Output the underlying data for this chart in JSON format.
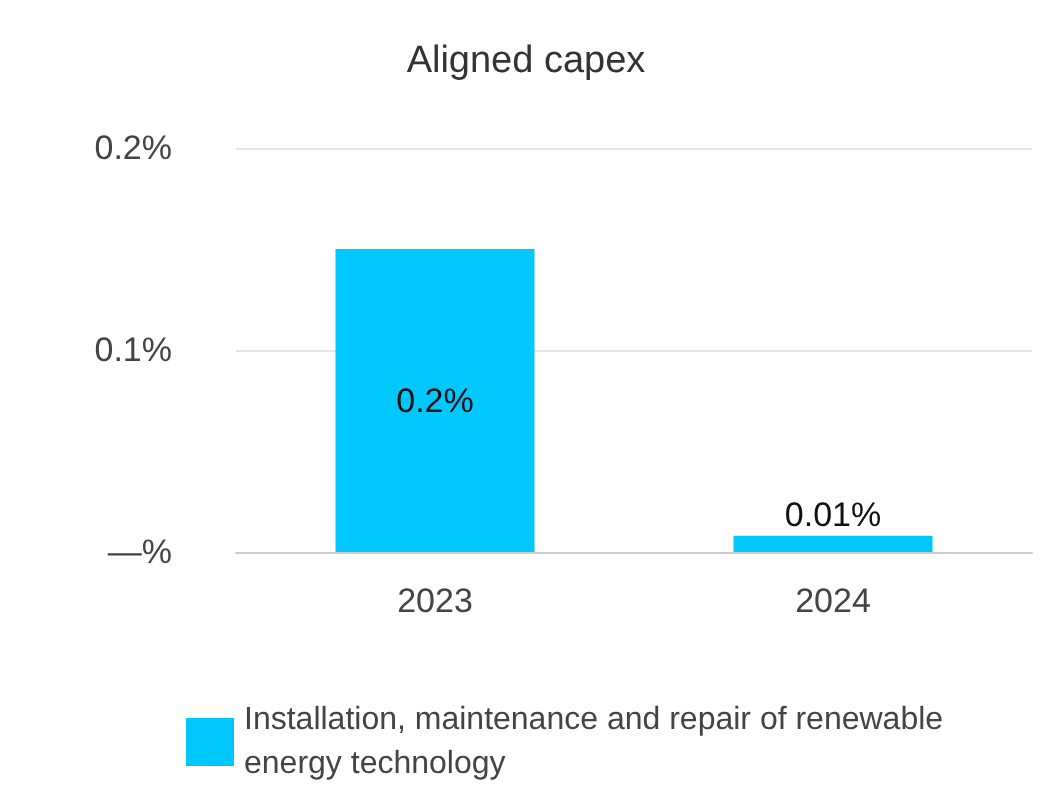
{
  "chart_data": {
    "type": "bar",
    "title": "Aligned capex",
    "categories": [
      "2023",
      "2024"
    ],
    "series": [
      {
        "name": "Installation, maintenance and repair of renewable energy technology",
        "color": "#00c8ff",
        "values": [
          0.15,
          0.008
        ],
        "value_labels": [
          "0.2%",
          "0.01%"
        ]
      }
    ],
    "ylim": [
      0,
      0.2
    ],
    "yticks": [
      {
        "value": 0,
        "label": "—%"
      },
      {
        "value": 0.1,
        "label": "0.1%"
      },
      {
        "value": 0.2,
        "label": "0.2%"
      }
    ],
    "grid": "y",
    "legend": "bottom"
  }
}
